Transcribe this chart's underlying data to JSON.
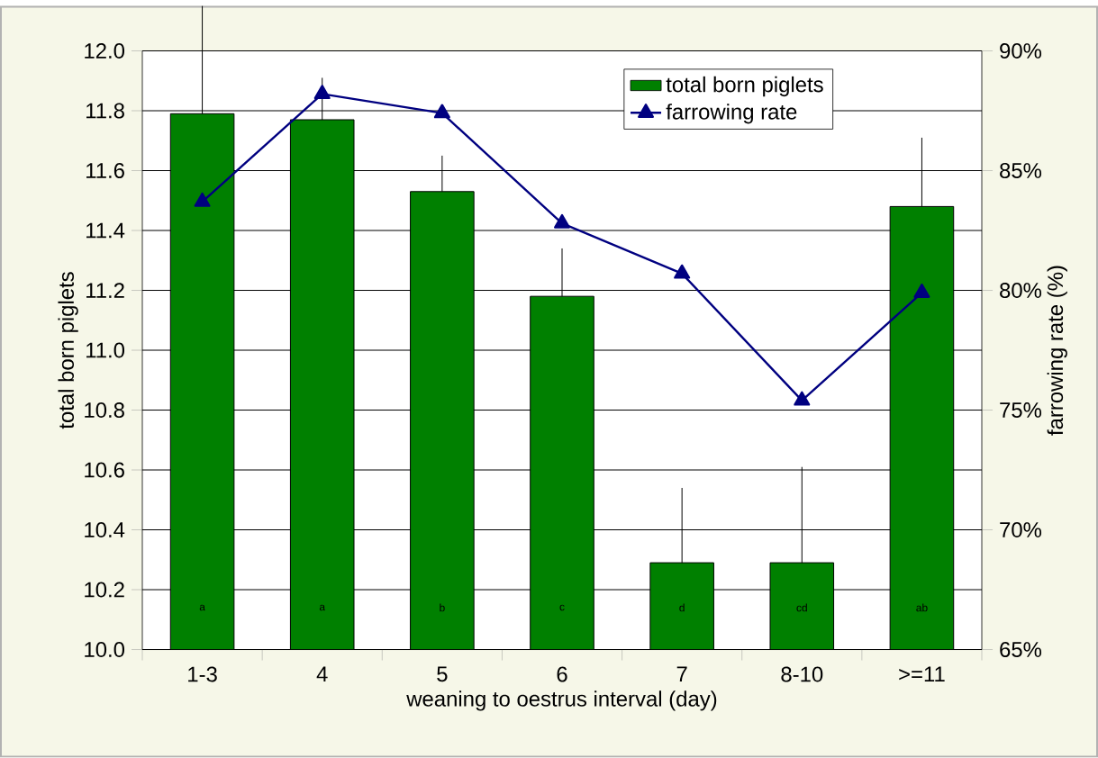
{
  "chart_data": {
    "type": "bar",
    "xlabel": "weaning to oestrus interval (day)",
    "ylabel": "total born piglets",
    "y2label": "farrowing rate (%)",
    "categories": [
      "1-3",
      "4",
      "5",
      "6",
      "7",
      "8-10",
      ">=11"
    ],
    "series": [
      {
        "name": "total born piglets",
        "color": "#008000",
        "values": [
          11.79,
          11.77,
          11.53,
          11.18,
          10.29,
          10.29,
          11.48
        ],
        "errors": [
          [
            11.79,
            12.15
          ],
          [
            11.77,
            11.91
          ],
          [
            11.53,
            11.65
          ],
          [
            11.18,
            11.34
          ],
          [
            10.29,
            10.54
          ],
          [
            10.29,
            10.61
          ],
          [
            11.48,
            11.71
          ]
        ]
      },
      {
        "name": "farrowing rate",
        "type": "line",
        "axis": "y2",
        "color": "#000080",
        "marker": "triangle",
        "values": [
          83.7,
          88.2,
          87.4,
          82.8,
          80.7,
          75.4,
          79.9
        ]
      }
    ],
    "ylim": [
      10.0,
      12.0
    ],
    "yticks": [
      {
        "value": 10.0,
        "label": "10.0"
      },
      {
        "value": 10.2,
        "label": "10.2"
      },
      {
        "value": 10.4,
        "label": "10.4"
      },
      {
        "value": 10.6,
        "label": "10.6"
      },
      {
        "value": 10.8,
        "label": "10.8"
      },
      {
        "value": 11.0,
        "label": "11.0"
      },
      {
        "value": 11.2,
        "label": "11.2"
      },
      {
        "value": 11.4,
        "label": "11.4"
      },
      {
        "value": 11.6,
        "label": "11.6"
      },
      {
        "value": 11.8,
        "label": "11.8"
      },
      {
        "value": 12.0,
        "label": "12.0"
      }
    ],
    "y2lim": [
      65,
      90
    ],
    "y2ticks": [
      {
        "value": 65,
        "label": "65%"
      },
      {
        "value": 70,
        "label": "70%"
      },
      {
        "value": 75,
        "label": "75%"
      },
      {
        "value": 80,
        "label": "80%"
      },
      {
        "value": 85,
        "label": "85%"
      },
      {
        "value": 90,
        "label": "90%"
      }
    ],
    "grid": "y",
    "legend": "top right",
    "annotations": [
      "a",
      "a",
      "b",
      "c",
      "d",
      "cd",
      "ab"
    ]
  }
}
